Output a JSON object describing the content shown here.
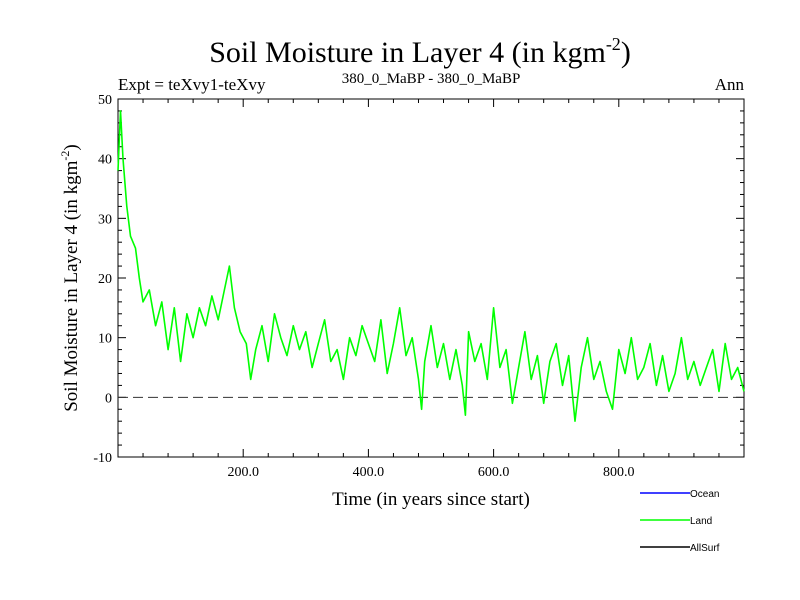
{
  "chart_data": {
    "type": "line",
    "title_main": "Soil Moisture in Layer 4 (in kgm",
    "title_sup": "-2",
    "title_close": ")",
    "subtitle_left": "Expt = teXvy1-teXvy",
    "subtitle_center": "380_0_MaBP - 380_0_MaBP",
    "subtitle_right": "Ann",
    "xlabel": "Time (in years since start)",
    "ylabel_main": "Soil Moisture in Layer 4 (in kgm",
    "ylabel_sup": "-2",
    "ylabel_close": ")",
    "xlim": [
      0,
      1000
    ],
    "ylim": [
      -10,
      50
    ],
    "xticks": [
      200,
      400,
      600,
      800
    ],
    "xtick_labels": [
      "200.0",
      "400.0",
      "600.0",
      "800.0"
    ],
    "yticks": [
      -10,
      0,
      10,
      20,
      30,
      40,
      50
    ],
    "ytick_labels": [
      "-10",
      "0",
      "10",
      "20",
      "30",
      "40",
      "50"
    ],
    "reference_line_y": 0,
    "legend_position": "bottom-right",
    "series": [
      {
        "name": "Ocean",
        "color": "#0000ff",
        "x": [],
        "values": []
      },
      {
        "name": "Land",
        "color": "#00ff00",
        "x": [
          0,
          4,
          8,
          14,
          20,
          28,
          34,
          40,
          50,
          60,
          70,
          80,
          90,
          100,
          110,
          120,
          130,
          140,
          150,
          160,
          170,
          178,
          186,
          195,
          205,
          212,
          220,
          230,
          240,
          250,
          260,
          270,
          280,
          290,
          300,
          310,
          320,
          330,
          340,
          350,
          360,
          370,
          380,
          390,
          400,
          410,
          420,
          430,
          440,
          450,
          460,
          470,
          480,
          485,
          490,
          500,
          510,
          520,
          530,
          540,
          550,
          555,
          560,
          570,
          580,
          590,
          600,
          610,
          620,
          630,
          640,
          650,
          660,
          670,
          680,
          690,
          700,
          710,
          720,
          730,
          740,
          750,
          760,
          770,
          780,
          790,
          800,
          810,
          820,
          830,
          840,
          850,
          860,
          870,
          880,
          890,
          900,
          910,
          920,
          930,
          940,
          950,
          960,
          970,
          980,
          990,
          1000
        ],
        "values": [
          38,
          48,
          40,
          32,
          27,
          25,
          20,
          16,
          18,
          12,
          16,
          8,
          15,
          6,
          14,
          10,
          15,
          12,
          17,
          13,
          18,
          22,
          15,
          11,
          9,
          3,
          8,
          12,
          6,
          14,
          10,
          7,
          12,
          8,
          11,
          5,
          9,
          13,
          6,
          8,
          3,
          10,
          7,
          12,
          9,
          6,
          13,
          4,
          9,
          15,
          7,
          10,
          3,
          -2,
          6,
          12,
          5,
          9,
          3,
          8,
          2,
          -3,
          11,
          6,
          9,
          3,
          15,
          5,
          8,
          -1,
          5,
          11,
          3,
          7,
          -1,
          6,
          9,
          2,
          7,
          -4,
          5,
          10,
          3,
          6,
          1,
          -2,
          8,
          4,
          10,
          3,
          5,
          9,
          2,
          7,
          1,
          4,
          10,
          3,
          6,
          2,
          5,
          8,
          1,
          9,
          3,
          5,
          1
        ]
      },
      {
        "name": "AllSurf",
        "color": "#000000",
        "x": [],
        "values": []
      }
    ]
  }
}
